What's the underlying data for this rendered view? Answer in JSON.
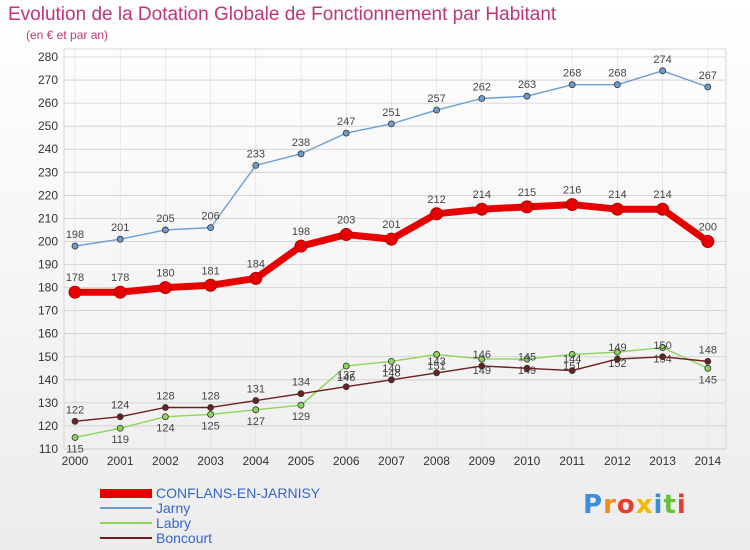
{
  "title": "Evolution de la Dotation Globale de Fonctionnement par Habitant",
  "subtitle": "(en € et par an)",
  "logo": {
    "letters": [
      "P",
      "r",
      "o",
      "x",
      "i",
      "t",
      "i"
    ],
    "colors": [
      "#3a8ed6",
      "#f08b1f",
      "#e63d2f",
      "#f5b800",
      "#3a8ed6",
      "#6bbf3a",
      "#e63d2f"
    ]
  },
  "chart_data": {
    "type": "line",
    "x": [
      "2000",
      "2001",
      "2002",
      "2003",
      "2004",
      "2005",
      "2006",
      "2007",
      "2008",
      "2009",
      "2010",
      "2011",
      "2012",
      "2013",
      "2014"
    ],
    "ylim": [
      110,
      280
    ],
    "yticks": [
      110,
      120,
      130,
      140,
      150,
      160,
      170,
      180,
      190,
      200,
      210,
      220,
      230,
      240,
      250,
      260,
      270,
      280
    ],
    "grid": true,
    "legend_position": "bottom",
    "series": [
      {
        "name": "CONFLANS-EN-JARNISY",
        "color": "#e60000",
        "values": [
          178,
          178,
          180,
          181,
          184,
          198,
          203,
          201,
          212,
          214,
          215,
          216,
          214,
          214,
          200
        ]
      },
      {
        "name": "Jarny",
        "color": "#6a9ed0",
        "values": [
          198,
          201,
          205,
          206,
          233,
          238,
          247,
          251,
          257,
          262,
          263,
          268,
          268,
          274,
          267
        ]
      },
      {
        "name": "Labry",
        "color": "#8bd65a",
        "values": [
          115,
          119,
          124,
          125,
          127,
          129,
          146,
          148,
          151,
          149,
          149,
          151,
          152,
          154,
          145
        ]
      },
      {
        "name": "Boncourt",
        "color": "#6b2020",
        "values": [
          122,
          124,
          128,
          128,
          131,
          134,
          137,
          140,
          143,
          146,
          145,
          144,
          149,
          150,
          148
        ]
      }
    ]
  }
}
